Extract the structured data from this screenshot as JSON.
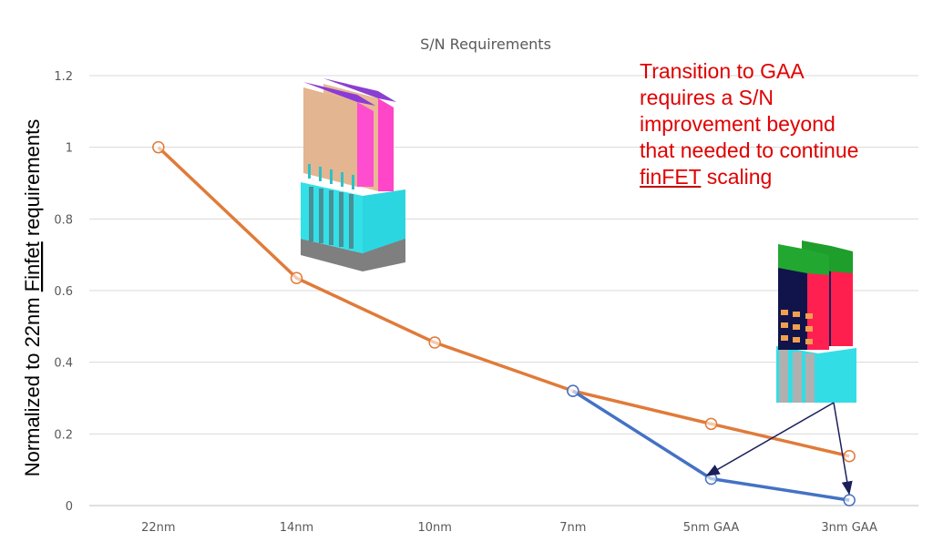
{
  "chart_data": {
    "type": "line",
    "title": "S/N Requirements",
    "xlabel": "",
    "ylabel_parts": [
      "Normalized to 22nm ",
      "Finfet",
      " requirements"
    ],
    "categories": [
      "22nm",
      "14nm",
      "10nm",
      "7nm",
      "5nm GAA",
      "3nm GAA"
    ],
    "ylim": [
      0,
      1.2
    ],
    "yticks": [
      "0",
      "0.2",
      "0.4",
      "0.6",
      "0.8",
      "1",
      "1.2"
    ],
    "grid": true,
    "series": [
      {
        "values": [
          1.0,
          0.635,
          0.455,
          0.32,
          0.228,
          0.138
        ],
        "color": "#e07b39"
      },
      {
        "values": [
          null,
          null,
          null,
          0.32,
          0.075,
          0.015
        ],
        "color": "#4472c4"
      }
    ],
    "annotation": {
      "lines": [
        "Transition to GAA",
        "requires a S/N",
        "improvement beyond",
        "that needed to continue"
      ],
      "last_line_underlined": "finFET",
      "last_line_rest": " scaling",
      "color": "#e00000"
    },
    "images": [
      "finfet-device-render",
      "gaa-nanosheet-device-render"
    ]
  }
}
